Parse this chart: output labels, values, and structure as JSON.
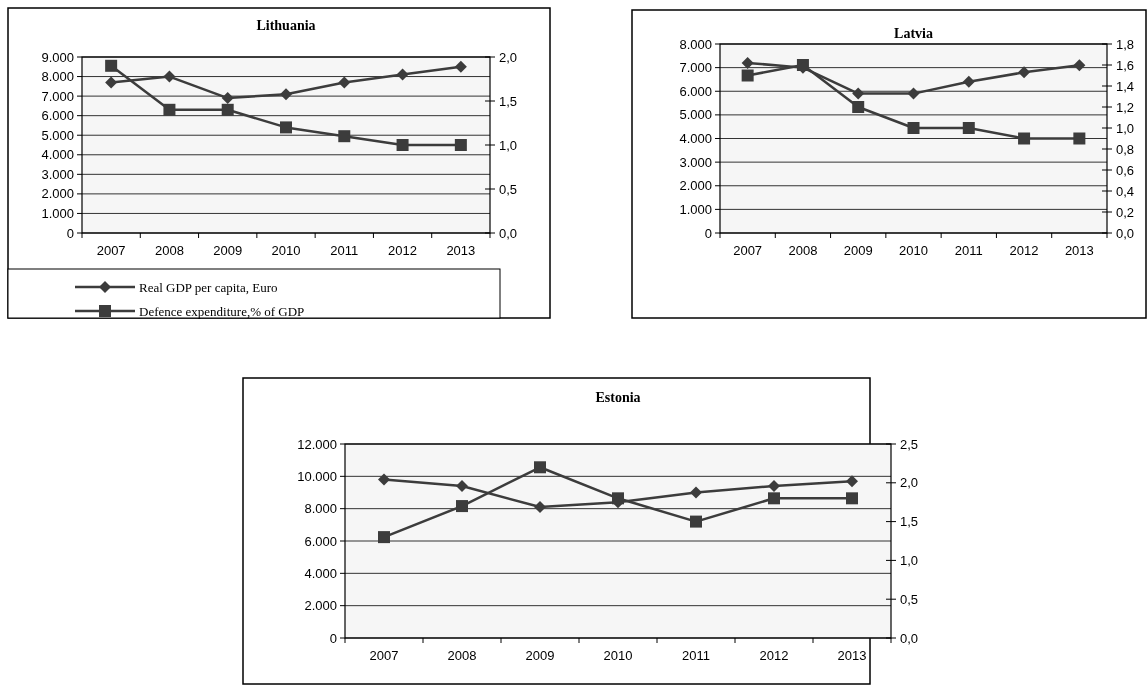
{
  "chart_data": [
    {
      "type": "line",
      "title": "Lithuania",
      "categories": [
        "2007",
        "2008",
        "2009",
        "2010",
        "2011",
        "2012",
        "2013"
      ],
      "series": [
        {
          "name": "Real GDP per capita, Euro",
          "color": "#3c3c3c",
          "marker": "diamond",
          "values": [
            7700,
            8000,
            6900,
            7100,
            7700,
            8100,
            8500
          ]
        },
        {
          "name": "Defence expenditure,% of GDP",
          "color": "#3c3c3c",
          "marker": "square",
          "axis": "y2",
          "values": [
            1.9,
            1.4,
            1.4,
            1.2,
            1.1,
            1.0,
            1.0
          ]
        }
      ],
      "ylim": [
        0,
        9000
      ],
      "yticks": [
        {
          "value": 0,
          "label": "0"
        },
        {
          "value": 1000,
          "label": "1.000"
        },
        {
          "value": 2000,
          "label": "2.000"
        },
        {
          "value": 3000,
          "label": "3.000"
        },
        {
          "value": 4000,
          "label": "4.000"
        },
        {
          "value": 5000,
          "label": "5.000"
        },
        {
          "value": 6000,
          "label": "6.000"
        },
        {
          "value": 7000,
          "label": "7.000"
        },
        {
          "value": 8000,
          "label": "8.000"
        },
        {
          "value": 9000,
          "label": "9.000"
        }
      ],
      "y2lim": [
        0,
        2
      ],
      "y2ticks": [
        {
          "value": 0,
          "label": "0,0"
        },
        {
          "value": 0.5,
          "label": "0,5"
        },
        {
          "value": 1,
          "label": "1,0"
        },
        {
          "value": 1.5,
          "label": "1,5"
        },
        {
          "value": 2,
          "label": "2,0"
        }
      ],
      "grid": "y",
      "legend": "bottom"
    },
    {
      "type": "line",
      "title": "Latvia",
      "categories": [
        "2007",
        "2008",
        "2009",
        "2010",
        "2011",
        "2012",
        "2013"
      ],
      "series": [
        {
          "color": "#3c3c3c",
          "marker": "diamond",
          "values": [
            7200,
            7000,
            5900,
            5900,
            6400,
            6800,
            7100
          ]
        },
        {
          "color": "#3c3c3c",
          "marker": "square",
          "axis": "y2",
          "values": [
            1.5,
            1.6,
            1.2,
            1.0,
            1.0,
            0.9,
            0.9
          ]
        }
      ],
      "ylim": [
        0,
        8000
      ],
      "yticks": [
        {
          "value": 0,
          "label": "0"
        },
        {
          "value": 1000,
          "label": "1.000"
        },
        {
          "value": 2000,
          "label": "2.000"
        },
        {
          "value": 3000,
          "label": "3.000"
        },
        {
          "value": 4000,
          "label": "4.000"
        },
        {
          "value": 5000,
          "label": "5.000"
        },
        {
          "value": 6000,
          "label": "6.000"
        },
        {
          "value": 7000,
          "label": "7.000"
        },
        {
          "value": 8000,
          "label": "8.000"
        }
      ],
      "y2lim": [
        0,
        1.8
      ],
      "y2ticks": [
        {
          "value": 0,
          "label": "0,0"
        },
        {
          "value": 0.2,
          "label": "0,2"
        },
        {
          "value": 0.4,
          "label": "0,4"
        },
        {
          "value": 0.6,
          "label": "0,6"
        },
        {
          "value": 0.8,
          "label": "0,8"
        },
        {
          "value": 1,
          "label": "1,0"
        },
        {
          "value": 1.2,
          "label": "1,2"
        },
        {
          "value": 1.4,
          "label": "1,4"
        },
        {
          "value": 1.6,
          "label": "1,6"
        },
        {
          "value": 1.8,
          "label": "1,8"
        }
      ],
      "grid": "y"
    },
    {
      "type": "line",
      "title": "Estonia",
      "categories": [
        "2007",
        "2008",
        "2009",
        "2010",
        "2011",
        "2012",
        "2013"
      ],
      "series": [
        {
          "color": "#3c3c3c",
          "marker": "diamond",
          "values": [
            9800,
            9400,
            8100,
            8400,
            9000,
            9400,
            9700
          ]
        },
        {
          "color": "#3c3c3c",
          "marker": "square",
          "axis": "y2",
          "values": [
            1.3,
            1.7,
            2.2,
            1.8,
            1.5,
            1.8,
            1.8
          ]
        }
      ],
      "ylim": [
        0,
        12000
      ],
      "yticks": [
        {
          "value": 0,
          "label": "0"
        },
        {
          "value": 2000,
          "label": "2.000"
        },
        {
          "value": 4000,
          "label": "4.000"
        },
        {
          "value": 6000,
          "label": "6.000"
        },
        {
          "value": 8000,
          "label": "8.000"
        },
        {
          "value": 10000,
          "label": "10.000"
        },
        {
          "value": 12000,
          "label": "12.000"
        }
      ],
      "y2lim": [
        0,
        2.5
      ],
      "y2ticks": [
        {
          "value": 0,
          "label": "0,0"
        },
        {
          "value": 0.5,
          "label": "0,5"
        },
        {
          "value": 1,
          "label": "1,0"
        },
        {
          "value": 1.5,
          "label": "1,5"
        },
        {
          "value": 2,
          "label": "2,0"
        },
        {
          "value": 2.5,
          "label": "2,5"
        }
      ],
      "grid": "y"
    }
  ]
}
